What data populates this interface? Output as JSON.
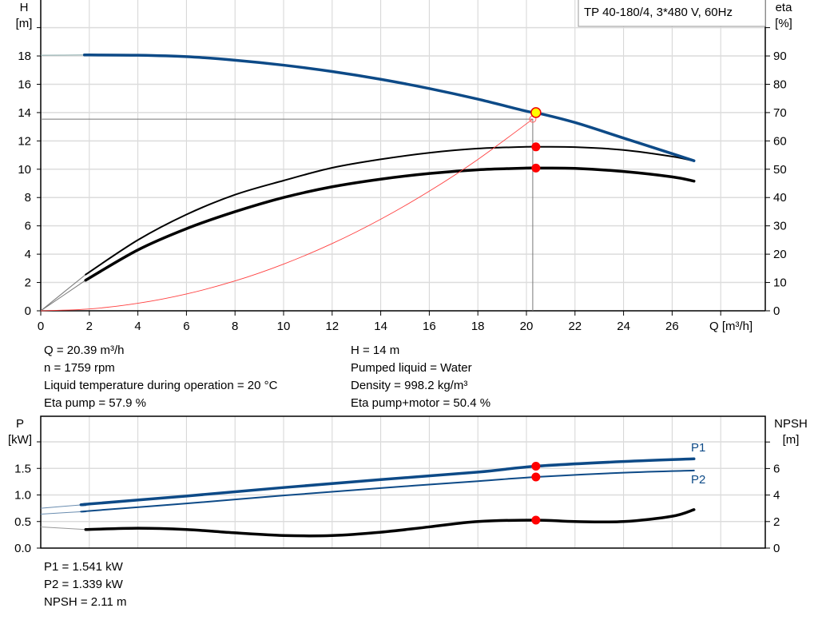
{
  "chart_data": [
    {
      "type": "line",
      "title": "TP 40-180/4, 3*480 V, 60Hz",
      "xlabel": "Q [m³/h]",
      "ylabel": "H\n[m]",
      "ylabel_left": {
        "name": "H",
        "unit": "[m]"
      },
      "ylabel_right": {
        "name": "eta",
        "unit": "[%]"
      },
      "xlim": [
        0,
        29.5
      ],
      "ylim_left": [
        0,
        22
      ],
      "ylim_right": [
        0,
        110
      ],
      "x_ticks": [
        "0",
        "2",
        "4",
        "6",
        "8",
        "10",
        "12",
        "14",
        "16",
        "18",
        "20",
        "22",
        "24",
        "26"
      ],
      "y_ticks_left": [
        "0",
        "2",
        "4",
        "6",
        "8",
        "10",
        "12",
        "14",
        "16",
        "18"
      ],
      "y_ticks_right": [
        "0",
        "10",
        "20",
        "30",
        "40",
        "50",
        "60",
        "70",
        "80",
        "90"
      ],
      "grid": true,
      "series": [
        {
          "axis": "left",
          "color": "#0d4a87",
          "x": [
            0,
            1.85,
            2,
            4,
            6,
            8,
            10,
            12,
            14,
            16,
            18,
            20,
            20.39,
            22,
            24,
            26,
            26.9
          ],
          "y": [
            18.05,
            18.07,
            18.07,
            18.05,
            17.95,
            17.7,
            17.35,
            16.9,
            16.35,
            15.7,
            14.95,
            14.1,
            14.0,
            13.3,
            12.2,
            11.1,
            10.6
          ]
        },
        {
          "axis": "right",
          "color": "#000000",
          "x": [
            0,
            1.85,
            4,
            6,
            8,
            10,
            12,
            14,
            16,
            18,
            20,
            20.39,
            22,
            24,
            26,
            26.9
          ],
          "y": [
            0,
            12.8,
            25,
            34,
            41,
            46,
            50.5,
            53.5,
            55.8,
            57.3,
            57.9,
            57.9,
            57.8,
            56.8,
            54.5,
            52.9
          ]
        },
        {
          "axis": "right",
          "color": "#000000",
          "x": [
            0,
            1.85,
            4,
            6,
            8,
            10,
            12,
            14,
            16,
            18,
            20,
            20.39,
            22,
            24,
            26,
            26.9
          ],
          "y": [
            0,
            10.8,
            21.5,
            29,
            35,
            40,
            43.8,
            46.5,
            48.5,
            49.8,
            50.4,
            50.4,
            50.3,
            49.2,
            47.3,
            45.8
          ]
        },
        {
          "axis": "left",
          "color": "#ff4040",
          "x": [
            0,
            2,
            4,
            6,
            8,
            10,
            12,
            14,
            16,
            18,
            20.26
          ],
          "y": [
            0,
            0.13,
            0.53,
            1.19,
            2.11,
            3.3,
            4.75,
            6.47,
            8.45,
            10.69,
            13.54
          ]
        }
      ],
      "operating_point": {
        "Q": 20.39,
        "H": 14,
        "eta_pump": 57.9,
        "eta_total": 50.4
      },
      "system_point": {
        "Q": 20.26,
        "H": 13.54
      }
    },
    {
      "type": "line",
      "ylabel_left": {
        "name": "P",
        "unit": "[kW]"
      },
      "ylabel_right": {
        "name": "NPSH",
        "unit": "[m]"
      },
      "xlim": [
        0,
        29.5
      ],
      "ylim_left": [
        0,
        2.5
      ],
      "ylim_right": [
        0,
        10
      ],
      "y_ticks_left": [
        "0.0",
        "0.5",
        "1.0",
        "1.5"
      ],
      "y_ticks_right": [
        "0",
        "2",
        "4",
        "6"
      ],
      "grid": true,
      "series": [
        {
          "name": "P1",
          "axis": "left",
          "color": "#0d4a87",
          "x": [
            0,
            1.85,
            2,
            6,
            10,
            14,
            18,
            20.39,
            24,
            26.9
          ],
          "y": [
            0.75,
            0.82,
            0.83,
            0.98,
            1.14,
            1.29,
            1.43,
            1.541,
            1.63,
            1.68
          ]
        },
        {
          "name": "P2",
          "axis": "left",
          "color": "#0d4a87",
          "x": [
            0,
            1.85,
            2,
            6,
            10,
            14,
            18,
            20.39,
            24,
            26.9
          ],
          "y": [
            0.64,
            0.69,
            0.7,
            0.84,
            0.99,
            1.13,
            1.26,
            1.339,
            1.42,
            1.46
          ]
        },
        {
          "axis": "right",
          "color": "#000000",
          "x": [
            0,
            1.85,
            4,
            6,
            8,
            10,
            12,
            14,
            16,
            18,
            20.39,
            22,
            24,
            26,
            26.9
          ],
          "y": [
            1.6,
            1.4,
            1.5,
            1.4,
            1.15,
            0.95,
            0.95,
            1.2,
            1.6,
            2.0,
            2.11,
            2.0,
            2.0,
            2.4,
            2.9
          ]
        }
      ],
      "operating_point": {
        "Q": 20.39,
        "P1": 1.541,
        "P2": 1.339,
        "NPSH": 2.11
      }
    }
  ],
  "info_top_left": [
    "Q = 20.39 m³/h",
    "n = 1759 rpm",
    "Liquid temperature during operation = 20 °C",
    "Eta pump = 57.9 %"
  ],
  "info_top_right": [
    "H = 14 m",
    "Pumped liquid = Water",
    "Density = 998.2 kg/m³",
    "Eta pump+motor = 50.4 %"
  ],
  "info_bottom": [
    "P1 = 1.541 kW",
    "P2 = 1.339 kW",
    "NPSH = 2.11 m"
  ]
}
